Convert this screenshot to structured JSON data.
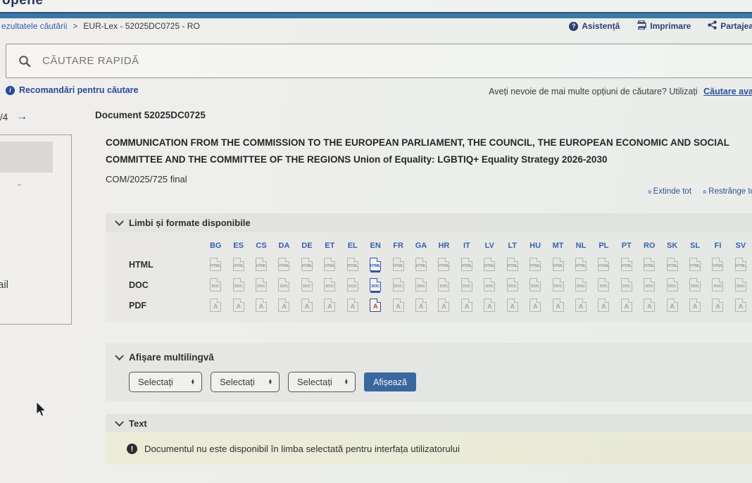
{
  "header": {
    "partial_logo": "opene",
    "breadcrumb": {
      "prev": "ezultatele căutării",
      "separator": ">",
      "current": "EUR-Lex - 52025DC0725 - RO"
    },
    "actions": [
      {
        "icon": "help-icon",
        "label": "Asistență"
      },
      {
        "icon": "printer-icon",
        "label": "Imprimare"
      },
      {
        "icon": "share-icon",
        "label": "Partajea"
      }
    ]
  },
  "search": {
    "placeholder": "CĂUTARE RAPIDĂ"
  },
  "tips": {
    "left_link": "Recomandări pentru căutare",
    "right_text": "Aveți nevoie de mai multe opțiuni de căutare? Utilizați",
    "right_link": "Căutare ava"
  },
  "pager": {
    "label": "/4",
    "arrow": "→"
  },
  "document": {
    "number_label": "Document 52025DC0725",
    "title": "COMMUNICATION FROM THE COMMISSION TO THE EUROPEAN PARLIAMENT, THE COUNCIL, THE EUROPEAN ECONOMIC AND SOCIAL COMMITTEE AND THE COMMITTEE OF THE REGIONS Union of Equality: LGBTIQ+ Equality Strategy 2026-2030",
    "reference": "COM/2025/725 final"
  },
  "expand_controls": {
    "expand_label": "Extinde tot",
    "collapse_label": "Restrânge to"
  },
  "side_panel": {
    "partial_label": "ail"
  },
  "languages_section": {
    "title": "Limbi și formate disponibile",
    "languages": [
      "BG",
      "ES",
      "CS",
      "DA",
      "DE",
      "ET",
      "EL",
      "EN",
      "FR",
      "GA",
      "HR",
      "IT",
      "LV",
      "LT",
      "HU",
      "MT",
      "NL",
      "PL",
      "PT",
      "RO",
      "SK",
      "SL",
      "FI",
      "SV"
    ],
    "formats": [
      "HTML",
      "DOC",
      "PDF"
    ],
    "active_language": "EN"
  },
  "multilingual_section": {
    "title": "Afișare multilingvă",
    "selects": [
      "Selectați",
      "Selectați",
      "Selectați"
    ],
    "button_label": "Afișează"
  },
  "text_section": {
    "title": "Text",
    "notice": "Documentul nu este disponibil în limba selectată pentru interfața utilizatorului"
  },
  "colors": {
    "accent_link": "#2a52a8",
    "topbar_blue": "#2e6d9e",
    "button_bg": "#2b5c98",
    "notice_bg": "#edebd7",
    "pdf_red": "#c3271f"
  }
}
